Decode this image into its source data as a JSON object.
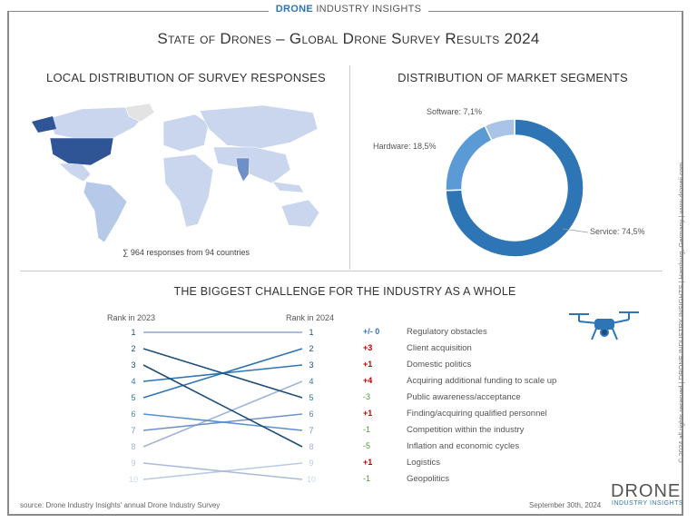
{
  "header": {
    "brand_bold": "DRONE",
    "brand_rest": " INDUSTRY INSIGHTS",
    "title": "State of Drones – Global Drone Survey Results 2024"
  },
  "map": {
    "heading": "Local distribution of survey responses",
    "caption": "∑ 964 responses from 94 countries",
    "highlight_color": "#2f5597",
    "base_color": "#c9d6ee"
  },
  "chart_data": [
    {
      "type": "pie",
      "title": "Distribution of market segments",
      "donut": true,
      "slices": [
        {
          "label": "Service",
          "value": 74.5,
          "display": "Service: 74,5%",
          "color": "#2e75b6"
        },
        {
          "label": "Hardware",
          "value": 18.5,
          "display": "Hardware: 18,5%",
          "color": "#5b9bd5"
        },
        {
          "label": "Software",
          "value": 7.1,
          "display": "Software: 7,1%",
          "color": "#a9c4e6"
        }
      ]
    },
    {
      "type": "line",
      "title": "The biggest challenge for the industry as a whole",
      "subtype": "slope",
      "xlabels": [
        "Rank in 2023",
        "Rank in 2024"
      ],
      "items": [
        {
          "label": "Regulatory obstacles",
          "rank2023": 1,
          "rank2024": 1,
          "change": "+/- 0"
        },
        {
          "label": "Client acquisition",
          "rank2023": 5,
          "rank2024": 2,
          "change": "+3"
        },
        {
          "label": "Domestic politics",
          "rank2023": 4,
          "rank2024": 3,
          "change": "+1"
        },
        {
          "label": "Acquiring additional funding to scale up",
          "rank2023": 8,
          "rank2024": 4,
          "change": "+4"
        },
        {
          "label": "Public awareness/acceptance",
          "rank2023": 2,
          "rank2024": 5,
          "change": "-3"
        },
        {
          "label": "Finding/acquiring qualified personnel",
          "rank2023": 7,
          "rank2024": 6,
          "change": "+1"
        },
        {
          "label": "Competition within the industry",
          "rank2023": 6,
          "rank2024": 7,
          "change": "-1"
        },
        {
          "label": "Inflation and economic cycles",
          "rank2023": 3,
          "rank2024": 8,
          "change": "-5"
        },
        {
          "label": "Logistics",
          "rank2023": 10,
          "rank2024": 9,
          "change": "+1"
        },
        {
          "label": "Geopolitics",
          "rank2023": 9,
          "rank2024": 10,
          "change": "-1"
        }
      ],
      "change_colors": {
        "neutral": "#2e75b6",
        "up": "#c00000",
        "down": "#4e9a3a"
      }
    }
  ],
  "footer": {
    "source": "source: Drone Industry Insights' annual Drone Industry Survey",
    "date": "September 30th, 2024",
    "side": "© 2024 all rights reserved  |  DRONE INDUSTRY INSIGHTS  |  Hamburg, Germany  |  www.droneii.com",
    "logo_top": "DRONE",
    "logo_bottom": "INDUSTRY INSIGHTS"
  }
}
